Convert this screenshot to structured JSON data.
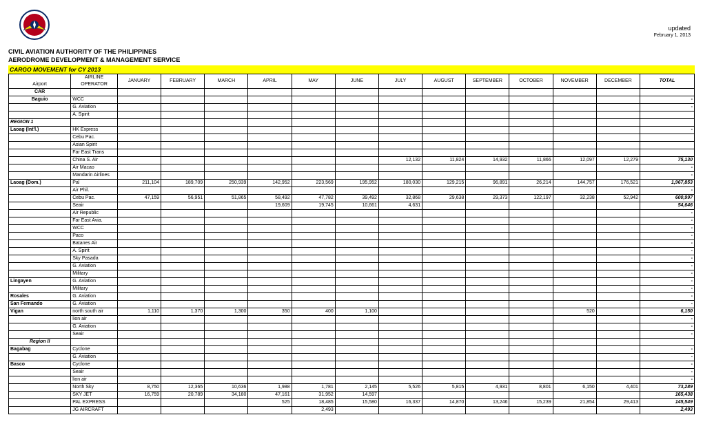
{
  "meta": {
    "updated": "updated",
    "date": "February 1, 2013",
    "agency": "CIVIL AVIATION AUTHORITY OF THE PHILIPPINES",
    "service": "AERODROME DEVELOPMENT & MANAGEMENT SERVICE",
    "banner": "CARGO MOVEMENT for CY 2013"
  },
  "cols": {
    "airport": "Airport",
    "op1": "AIRLINE",
    "op2": "OPERATOR",
    "m": [
      "JANUARY",
      "FEBRUARY",
      "MARCH",
      "APRIL",
      "MAY",
      "JUNE",
      "JULY",
      "AUGUST",
      "SEPTEMBER",
      "OCTOBER",
      "NOVEMBER",
      "DECEMBER"
    ],
    "total": "TOTAL"
  },
  "dash": "-",
  "rows": [
    {
      "a": "CAR",
      "ac": "airport-center",
      "op": "",
      "m": [
        "",
        "",
        "",
        "",
        "",
        "",
        "",
        "",
        "",
        "",
        "",
        ""
      ],
      "t": ""
    },
    {
      "a": "Baguio",
      "ac": "airport-center",
      "op": "WCC",
      "m": [
        "",
        "",
        "",
        "",
        "",
        "",
        "",
        "",
        "",
        "",
        "",
        ""
      ],
      "t": "-"
    },
    {
      "a": "",
      "op": "G. Aviation",
      "m": [
        "",
        "",
        "",
        "",
        "",
        "",
        "",
        "",
        "",
        "",
        "",
        ""
      ],
      "t": "-"
    },
    {
      "a": "",
      "op": "A. Spirit",
      "m": [
        "",
        "",
        "",
        "",
        "",
        "",
        "",
        "",
        "",
        "",
        "",
        ""
      ],
      "t": ""
    },
    {
      "a": "REGION 1",
      "ac": "airport-reg",
      "op": "",
      "m": [
        "",
        "",
        "",
        "",
        "",
        "",
        "",
        "",
        "",
        "",
        "",
        ""
      ],
      "t": ""
    },
    {
      "a": "Laoag (Int'l.)",
      "ac": "airport-plain",
      "op": "HK Express",
      "m": [
        "",
        "",
        "",
        "",
        "",
        "",
        "",
        "",
        "",
        "",
        "",
        ""
      ],
      "t": "-"
    },
    {
      "a": "",
      "op": "Cebu Pac.",
      "m": [
        "",
        "",
        "",
        "",
        "",
        "",
        "",
        "",
        "",
        "",
        "",
        ""
      ],
      "t": ""
    },
    {
      "a": "",
      "op": "Asian Spirit",
      "m": [
        "",
        "",
        "",
        "",
        "",
        "",
        "",
        "",
        "",
        "",
        "",
        ""
      ],
      "t": ""
    },
    {
      "a": "",
      "op": "Far East Trans",
      "m": [
        "",
        "",
        "",
        "",
        "",
        "",
        "",
        "",
        "",
        "",
        "",
        ""
      ],
      "t": ""
    },
    {
      "a": "",
      "op": "China S. Air",
      "m": [
        "",
        "",
        "",
        "",
        "",
        "",
        "12,132",
        "11,824",
        "14,932",
        "11,866",
        "12,097",
        "12,279"
      ],
      "t": "75,130"
    },
    {
      "a": "",
      "op": "Air Macao",
      "m": [
        "",
        "",
        "",
        "",
        "",
        "",
        "",
        "",
        "",
        "",
        "",
        ""
      ],
      "t": "-"
    },
    {
      "a": "",
      "op": "Mandarin Airlines",
      "m": [
        "",
        "",
        "",
        "",
        "",
        "",
        "",
        "",
        "",
        "",
        "",
        ""
      ],
      "t": "-"
    },
    {
      "a": "Laoag (Dom.)",
      "ac": "airport-plain",
      "op": "Pal",
      "m": [
        "211,104",
        "189,709",
        "250,939",
        "142,952",
        "223,569",
        "195,952",
        "180,030",
        "129,215",
        "96,891",
        "26,214",
        "144,757",
        "176,521"
      ],
      "t": "1,967,853"
    },
    {
      "a": "",
      "op": "Air Phil.",
      "m": [
        "",
        "",
        "",
        "",
        "",
        "",
        "",
        "",
        "",
        "",
        "",
        ""
      ],
      "t": "-"
    },
    {
      "a": "",
      "op": "Cebu Pac.",
      "m": [
        "47,159",
        "56,951",
        "51,865",
        "58,492",
        "47,782",
        "39,492",
        "32,868",
        "29,638",
        "29,373",
        "122,197",
        "32,238",
        "52,942"
      ],
      "t": "600,997"
    },
    {
      "a": "",
      "op": "Seair",
      "m": [
        "",
        "",
        "",
        "19,609",
        "19,745",
        "10,661",
        "4,631",
        "",
        "",
        "",
        "",
        ""
      ],
      "t": "54,646"
    },
    {
      "a": "",
      "op": "Air Republic",
      "m": [
        "",
        "",
        "",
        "",
        "",
        "",
        "",
        "",
        "",
        "",
        "",
        ""
      ],
      "t": "-"
    },
    {
      "a": "",
      "op": "Far East Avia.",
      "m": [
        "",
        "",
        "",
        "",
        "",
        "",
        "",
        "",
        "",
        "",
        "",
        ""
      ],
      "t": "-"
    },
    {
      "a": "",
      "op": "WCC",
      "m": [
        "",
        "",
        "",
        "",
        "",
        "",
        "",
        "",
        "",
        "",
        "",
        ""
      ],
      "t": "-"
    },
    {
      "a": "",
      "op": "Paco",
      "m": [
        "",
        "",
        "",
        "",
        "",
        "",
        "",
        "",
        "",
        "",
        "",
        ""
      ],
      "t": "-"
    },
    {
      "a": "",
      "op": "Batanes Air",
      "m": [
        "",
        "",
        "",
        "",
        "",
        "",
        "",
        "",
        "",
        "",
        "",
        ""
      ],
      "t": "-"
    },
    {
      "a": "",
      "op": "A. Spirit",
      "m": [
        "",
        "",
        "",
        "",
        "",
        "",
        "",
        "",
        "",
        "",
        "",
        ""
      ],
      "t": "-"
    },
    {
      "a": "",
      "op": "Sky Pasada",
      "m": [
        "",
        "",
        "",
        "",
        "",
        "",
        "",
        "",
        "",
        "",
        "",
        ""
      ],
      "t": "-"
    },
    {
      "a": "",
      "op": "G. Aviation",
      "m": [
        "",
        "",
        "",
        "",
        "",
        "",
        "",
        "",
        "",
        "",
        "",
        ""
      ],
      "t": "-"
    },
    {
      "a": "",
      "op": "Military",
      "m": [
        "",
        "",
        "",
        "",
        "",
        "",
        "",
        "",
        "",
        "",
        "",
        ""
      ],
      "t": "-"
    },
    {
      "a": "Lingayen",
      "ac": "airport-plain",
      "op": "G. Aviation",
      "m": [
        "",
        "",
        "",
        "",
        "",
        "",
        "",
        "",
        "",
        "",
        "",
        ""
      ],
      "t": "-"
    },
    {
      "a": "",
      "op": "Military",
      "m": [
        "",
        "",
        "",
        "",
        "",
        "",
        "",
        "",
        "",
        "",
        "",
        ""
      ],
      "t": "-"
    },
    {
      "a": "Rosales",
      "ac": "airport-plain",
      "op": "G. Aviation",
      "m": [
        "",
        "",
        "",
        "",
        "",
        "",
        "",
        "",
        "",
        "",
        "",
        ""
      ],
      "t": "-"
    },
    {
      "a": "San Fernando",
      "ac": "airport-plain",
      "op": "G. Aviation",
      "m": [
        "",
        "",
        "",
        "",
        "",
        "",
        "",
        "",
        "",
        "",
        "",
        ""
      ],
      "t": "-"
    },
    {
      "a": "Vigan",
      "ac": "airport-plain",
      "op": "north south air",
      "m": [
        "1,110",
        "1,370",
        "1,300",
        "350",
        "400",
        "1,100",
        "",
        "",
        "",
        "",
        "520",
        ""
      ],
      "t": "6,150"
    },
    {
      "a": "",
      "op": "lion air",
      "m": [
        "",
        "",
        "",
        "",
        "",
        "",
        "",
        "",
        "",
        "",
        "",
        ""
      ],
      "t": "-"
    },
    {
      "a": "",
      "op": "G. Aviation",
      "m": [
        "",
        "",
        "",
        "",
        "",
        "",
        "",
        "",
        "",
        "",
        "",
        ""
      ],
      "t": "-"
    },
    {
      "a": "",
      "op": "Seair",
      "m": [
        "",
        "",
        "",
        "",
        "",
        "",
        "",
        "",
        "",
        "",
        "",
        ""
      ],
      "t": "-"
    },
    {
      "a": "Region II",
      "ac": "airport-reg-c",
      "op": "",
      "m": [
        "",
        "",
        "",
        "",
        "",
        "",
        "",
        "",
        "",
        "",
        "",
        ""
      ],
      "t": ""
    },
    {
      "a": "Bagabag",
      "ac": "airport-plain",
      "op": "Cyclone",
      "m": [
        "",
        "",
        "",
        "",
        "",
        "",
        "",
        "",
        "",
        "",
        "",
        ""
      ],
      "t": "-"
    },
    {
      "a": "",
      "op": "G. Aviation",
      "m": [
        "",
        "",
        "",
        "",
        "",
        "",
        "",
        "",
        "",
        "",
        "",
        ""
      ],
      "t": "-"
    },
    {
      "a": "Basco",
      "ac": "airport-plain",
      "op": "Cyclone",
      "m": [
        "",
        "",
        "",
        "",
        "",
        "",
        "",
        "",
        "",
        "",
        "",
        ""
      ],
      "t": "-"
    },
    {
      "a": "",
      "op": "Seair",
      "m": [
        "",
        "",
        "",
        "",
        "",
        "",
        "",
        "",
        "",
        "",
        "",
        ""
      ],
      "t": "-"
    },
    {
      "a": "",
      "op": "lion air",
      "m": [
        "",
        "",
        "",
        "",
        "",
        "",
        "",
        "",
        "",
        "",
        "",
        ""
      ],
      "t": "-"
    },
    {
      "a": "",
      "op": "North Sky",
      "m": [
        "8,750",
        "12,365",
        "10,636",
        "1,988",
        "1,781",
        "2,145",
        "5,526",
        "5,815",
        "4,931",
        "8,801",
        "6,150",
        "4,401"
      ],
      "t": "73,289"
    },
    {
      "a": "",
      "op": "SKY JET",
      "m": [
        "16,759",
        "20,789",
        "34,180",
        "47,161",
        "31,952",
        "14,597",
        "",
        "",
        "",
        "",
        "",
        ""
      ],
      "t": "165,438"
    },
    {
      "a": "",
      "op": "PAL EXPRESS",
      "m": [
        "",
        "",
        "",
        "525",
        "18,485",
        "15,580",
        "16,337",
        "14,870",
        "13,246",
        "15,239",
        "21,854",
        "29,413"
      ],
      "t": "145,549"
    },
    {
      "a": "",
      "op": "JG AIRCRAFT",
      "m": [
        "",
        "",
        "",
        "",
        "2,493",
        "",
        "",
        "",
        "",
        "",
        "",
        ""
      ],
      "t": "2,493"
    }
  ]
}
